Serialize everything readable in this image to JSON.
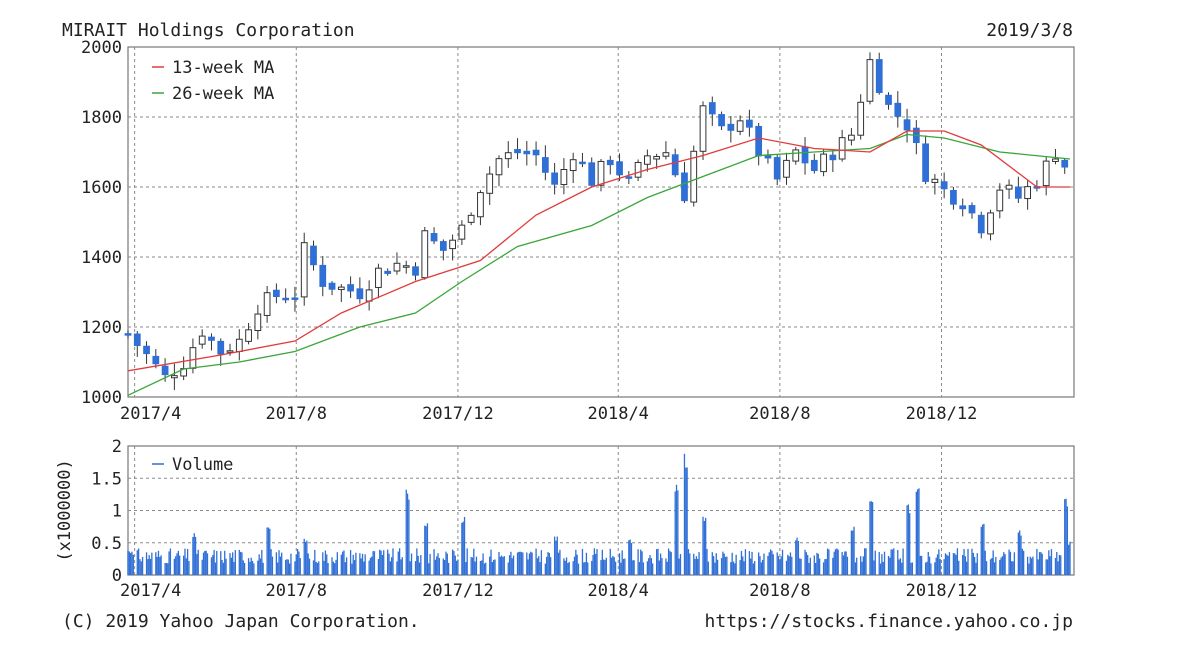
{
  "header": {
    "company": "MIRAIT Holdings Corporation",
    "date": "2019/3/8"
  },
  "footer": {
    "copyright": "(C) 2019 Yahoo Japan Corporation.",
    "url": "https://stocks.finance.yahoo.co.jp"
  },
  "colors": {
    "up_candle": "#ffffff",
    "down_candle": "#2f6fd6",
    "ma13": "#e03c3c",
    "ma26": "#3aa63a",
    "volume": "#2f6fd6",
    "grid": "#8a8a8a",
    "frame": "#777777"
  },
  "chart_data": [
    {
      "type": "candlestick",
      "title": "",
      "legend_position": "top-left",
      "legend": [
        "13-week MA",
        "26-week MA"
      ],
      "grid": true,
      "ylim": [
        1000,
        2000
      ],
      "y_ticks": [
        1000,
        1200,
        1400,
        1600,
        1800,
        2000
      ],
      "x_range": [
        "2017-03-27",
        "2019-03-11"
      ],
      "x_ticks": [
        {
          "label": "2017/4",
          "date": "2017-04-01"
        },
        {
          "label": "2017/8",
          "date": "2017-08-01"
        },
        {
          "label": "2017/12",
          "date": "2017-12-01"
        },
        {
          "label": "2018/4",
          "date": "2018-04-01"
        },
        {
          "label": "2018/8",
          "date": "2018-08-01"
        },
        {
          "label": "2018/12",
          "date": "2018-12-01"
        }
      ],
      "close_start": 1180,
      "close_anchors": [
        [
          "2017-03-27",
          1180
        ],
        [
          "2017-04-10",
          1120
        ],
        [
          "2017-04-24",
          1055
        ],
        [
          "2017-05-08",
          1100
        ],
        [
          "2017-05-22",
          1190
        ],
        [
          "2017-06-05",
          1130
        ],
        [
          "2017-06-19",
          1160
        ],
        [
          "2017-07-03",
          1260
        ],
        [
          "2017-07-17",
          1290
        ],
        [
          "2017-07-31",
          1290
        ],
        [
          "2017-08-07",
          1420
        ],
        [
          "2017-08-21",
          1330
        ],
        [
          "2017-09-04",
          1310
        ],
        [
          "2017-09-18",
          1300
        ],
        [
          "2017-10-02",
          1360
        ],
        [
          "2017-10-16",
          1380
        ],
        [
          "2017-10-30",
          1370
        ],
        [
          "2017-11-06",
          1460
        ],
        [
          "2017-11-20",
          1420
        ],
        [
          "2017-12-04",
          1480
        ],
        [
          "2017-12-18",
          1600
        ],
        [
          "2018-01-01",
          1680
        ],
        [
          "2018-01-15",
          1700
        ],
        [
          "2018-01-29",
          1690
        ],
        [
          "2018-02-12",
          1600
        ],
        [
          "2018-02-26",
          1700
        ],
        [
          "2018-03-12",
          1620
        ],
        [
          "2018-03-26",
          1680
        ],
        [
          "2018-04-09",
          1610
        ],
        [
          "2018-04-23",
          1690
        ],
        [
          "2018-05-07",
          1700
        ],
        [
          "2018-05-21",
          1580
        ],
        [
          "2018-06-04",
          1820
        ],
        [
          "2018-06-18",
          1760
        ],
        [
          "2018-07-02",
          1800
        ],
        [
          "2018-07-16",
          1700
        ],
        [
          "2018-07-30",
          1620
        ],
        [
          "2018-08-13",
          1700
        ],
        [
          "2018-08-27",
          1650
        ],
        [
          "2018-09-10",
          1700
        ],
        [
          "2018-09-24",
          1750
        ],
        [
          "2018-10-08",
          1960
        ],
        [
          "2018-10-22",
          1830
        ],
        [
          "2018-11-05",
          1780
        ],
        [
          "2018-11-19",
          1640
        ],
        [
          "2018-12-03",
          1590
        ],
        [
          "2018-12-17",
          1560
        ],
        [
          "2018-12-31",
          1490
        ],
        [
          "2019-01-14",
          1600
        ],
        [
          "2019-01-28",
          1570
        ],
        [
          "2019-02-11",
          1620
        ],
        [
          "2019-02-25",
          1700
        ],
        [
          "2019-03-08",
          1640
        ]
      ],
      "ma13_points": [
        [
          "2017-03-27",
          1075
        ],
        [
          "2017-06-05",
          1120
        ],
        [
          "2017-07-31",
          1160
        ],
        [
          "2017-09-04",
          1240
        ],
        [
          "2017-10-30",
          1330
        ],
        [
          "2017-12-18",
          1390
        ],
        [
          "2018-01-29",
          1520
        ],
        [
          "2018-03-12",
          1600
        ],
        [
          "2018-04-23",
          1650
        ],
        [
          "2018-06-04",
          1690
        ],
        [
          "2018-07-16",
          1740
        ],
        [
          "2018-08-27",
          1710
        ],
        [
          "2018-10-08",
          1700
        ],
        [
          "2018-11-05",
          1760
        ],
        [
          "2018-12-03",
          1760
        ],
        [
          "2018-12-31",
          1720
        ],
        [
          "2019-02-11",
          1600
        ],
        [
          "2019-03-08",
          1600
        ]
      ],
      "ma26_points": [
        [
          "2017-03-27",
          1005
        ],
        [
          "2017-05-08",
          1080
        ],
        [
          "2017-06-19",
          1100
        ],
        [
          "2017-07-31",
          1130
        ],
        [
          "2017-09-18",
          1200
        ],
        [
          "2017-10-30",
          1240
        ],
        [
          "2017-12-04",
          1330
        ],
        [
          "2018-01-15",
          1430
        ],
        [
          "2018-03-12",
          1490
        ],
        [
          "2018-04-23",
          1570
        ],
        [
          "2018-06-04",
          1630
        ],
        [
          "2018-07-16",
          1690
        ],
        [
          "2018-08-27",
          1700
        ],
        [
          "2018-10-08",
          1710
        ],
        [
          "2018-11-05",
          1750
        ],
        [
          "2018-12-03",
          1740
        ],
        [
          "2019-01-14",
          1700
        ],
        [
          "2019-03-08",
          1680
        ]
      ]
    },
    {
      "type": "bar",
      "title": "",
      "legend_position": "top-left",
      "legend": [
        "Volume"
      ],
      "ylabel": "(x1000000)",
      "ylim": [
        0,
        2
      ],
      "y_ticks": [
        "0",
        "0.5",
        "1",
        "1.5",
        "2"
      ],
      "base_level": 0.32,
      "spikes": [
        [
          "2017-03-27",
          0.4
        ],
        [
          "2017-05-15",
          0.65
        ],
        [
          "2017-07-10",
          0.75
        ],
        [
          "2017-08-07",
          0.6
        ],
        [
          "2017-10-23",
          1.33
        ],
        [
          "2017-11-06",
          0.85
        ],
        [
          "2017-12-04",
          0.95
        ],
        [
          "2018-02-12",
          0.6
        ],
        [
          "2018-04-09",
          0.55
        ],
        [
          "2018-05-14",
          1.5
        ],
        [
          "2018-05-21",
          1.88
        ],
        [
          "2018-06-04",
          0.95
        ],
        [
          "2018-08-13",
          0.6
        ],
        [
          "2018-09-24",
          0.75
        ],
        [
          "2018-10-08",
          1.15
        ],
        [
          "2018-11-05",
          1.1
        ],
        [
          "2018-11-12",
          1.38
        ],
        [
          "2018-12-31",
          0.85
        ],
        [
          "2019-01-28",
          0.7
        ],
        [
          "2019-03-04",
          1.2
        ],
        [
          "2019-03-08",
          0.55
        ]
      ]
    }
  ]
}
